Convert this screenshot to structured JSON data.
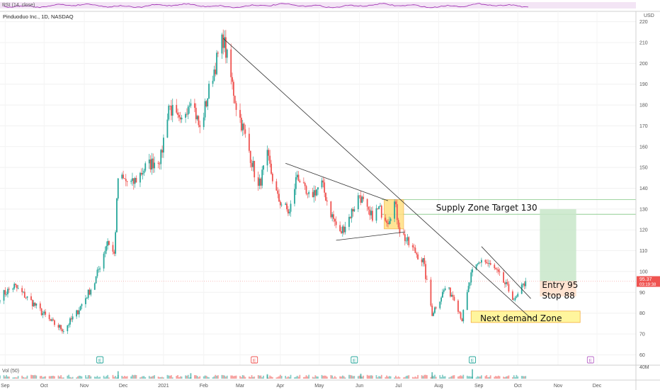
{
  "header": {
    "indicator_label": "RSI (14, close)",
    "symbol_title": "Pinduoduo Inc., 1D, NASDAQ",
    "currency": "USD",
    "last_price": "95.37",
    "countdown": "03:19:38",
    "volume_label": "Vol (50)",
    "volume_scale": "40M"
  },
  "colors": {
    "up": "#26a69a",
    "down": "#ef5350",
    "rsi_line": "#9c27b0",
    "rsi_band": "#f3e5f5",
    "earnings_green": "#26a69a",
    "earnings_red": "#ef5350",
    "earnings_future": "#ba68c8",
    "target_zone": "#c8e6c9",
    "stop_zone": "#ffe0cc",
    "supply_box": "#ffe082",
    "demand_box": "#fff59d",
    "price_badge": "#ef5350"
  },
  "chart_data": {
    "type": "candlestick",
    "title": "Pinduoduo Inc., 1D, NASDAQ",
    "ylabel": "USD",
    "ylim": [
      55,
      225
    ],
    "y_ticks": [
      60,
      70,
      80,
      90,
      100,
      110,
      120,
      130,
      140,
      150,
      160,
      170,
      180,
      190,
      200,
      210,
      220
    ],
    "x_ticks": [
      "Sep",
      "Oct",
      "Nov",
      "Dec",
      "2021",
      "Feb",
      "Mar",
      "Apr",
      "May",
      "Jun",
      "Jul",
      "Aug",
      "Sep",
      "Oct",
      "Nov",
      "Dec"
    ],
    "x_range": [
      "2020-08-28",
      "2021-12-31"
    ],
    "x_tick_dates": [
      "2020-09-01",
      "2020-10-01",
      "2020-11-01",
      "2020-12-01",
      "2021-01-01",
      "2021-02-01",
      "2021-03-01",
      "2021-04-01",
      "2021-05-01",
      "2021-06-01",
      "2021-07-01",
      "2021-08-01",
      "2021-09-01",
      "2021-10-01",
      "2021-11-01",
      "2021-12-01"
    ],
    "price_path": [
      [
        "2020-08-28",
        88
      ],
      [
        "2020-09-08",
        93
      ],
      [
        "2020-09-22",
        85
      ],
      [
        "2020-10-06",
        76
      ],
      [
        "2020-10-16",
        72
      ],
      [
        "2020-10-26",
        80
      ],
      [
        "2020-11-09",
        95
      ],
      [
        "2020-11-19",
        115
      ],
      [
        "2020-11-24",
        108
      ],
      [
        "2020-11-27",
        145
      ],
      [
        "2020-12-08",
        142
      ],
      [
        "2020-12-18",
        150
      ],
      [
        "2020-12-30",
        155
      ],
      [
        "2021-01-05",
        180
      ],
      [
        "2021-01-14",
        170
      ],
      [
        "2021-01-22",
        185
      ],
      [
        "2021-01-29",
        168
      ],
      [
        "2021-02-08",
        195
      ],
      [
        "2021-02-16",
        212
      ],
      [
        "2021-02-26",
        180
      ],
      [
        "2021-03-08",
        158
      ],
      [
        "2021-03-15",
        140
      ],
      [
        "2021-03-22",
        155
      ],
      [
        "2021-03-30",
        135
      ],
      [
        "2021-04-08",
        128
      ],
      [
        "2021-04-14",
        147
      ],
      [
        "2021-04-22",
        135
      ],
      [
        "2021-05-03",
        142
      ],
      [
        "2021-05-10",
        128
      ],
      [
        "2021-05-17",
        118
      ],
      [
        "2021-05-24",
        126
      ],
      [
        "2021-06-01",
        137
      ],
      [
        "2021-06-09",
        126
      ],
      [
        "2021-06-16",
        130
      ],
      [
        "2021-06-23",
        125
      ],
      [
        "2021-06-28",
        133
      ],
      [
        "2021-07-02",
        120
      ],
      [
        "2021-07-09",
        113
      ],
      [
        "2021-07-20",
        105
      ],
      [
        "2021-07-27",
        80
      ],
      [
        "2021-08-06",
        92
      ],
      [
        "2021-08-13",
        88
      ],
      [
        "2021-08-19",
        77
      ],
      [
        "2021-08-26",
        98
      ],
      [
        "2021-09-03",
        106
      ],
      [
        "2021-09-13",
        101
      ],
      [
        "2021-09-21",
        94
      ],
      [
        "2021-09-29",
        86
      ],
      [
        "2021-10-07",
        95.37
      ]
    ],
    "volume_spikes_millions": [
      [
        "2020-11-27",
        30
      ],
      [
        "2021-01-22",
        22
      ],
      [
        "2021-03-22",
        18
      ],
      [
        "2021-06-02",
        20
      ],
      [
        "2021-07-27",
        26
      ],
      [
        "2021-08-27",
        38
      ]
    ],
    "earnings_markers": [
      {
        "date": "2020-11-13",
        "label": "E",
        "kind": "earnings_green"
      },
      {
        "date": "2021-03-12",
        "label": "E",
        "kind": "earnings_red"
      },
      {
        "date": "2021-05-28",
        "label": "E",
        "kind": "earnings_green"
      },
      {
        "date": "2021-08-27",
        "label": "E",
        "kind": "earnings_green"
      },
      {
        "date": "2021-11-26",
        "label": "E",
        "kind": "earnings_future"
      }
    ],
    "annotations": {
      "supply_zone": {
        "label": "Supply Zone  Target 130",
        "y_low": 127.5,
        "y_high": 134.5
      },
      "entry_label": "Entry 95",
      "stop_label": "Stop 88",
      "target_box": {
        "y_top": 130,
        "y_bottom": 95.37
      },
      "stop_box": {
        "y_top": 95.37,
        "y_bottom": 88
      },
      "demand_zone": {
        "label": "Next demand Zone",
        "y_low": 75.5,
        "y_high": 81
      },
      "trendline_main": [
        [
          "2021-02-16",
          212
        ],
        [
          "2021-10-12",
          77
        ]
      ],
      "trendline_upper_pattern": [
        [
          "2021-04-05",
          152
        ],
        [
          "2021-06-23",
          134
        ]
      ],
      "trendline_lower_pattern": [
        [
          "2021-05-14",
          115
        ],
        [
          "2021-07-06",
          119
        ]
      ],
      "trendline_channel": [
        [
          "2021-09-03",
          112
        ],
        [
          "2021-10-11",
          87
        ]
      ]
    }
  }
}
